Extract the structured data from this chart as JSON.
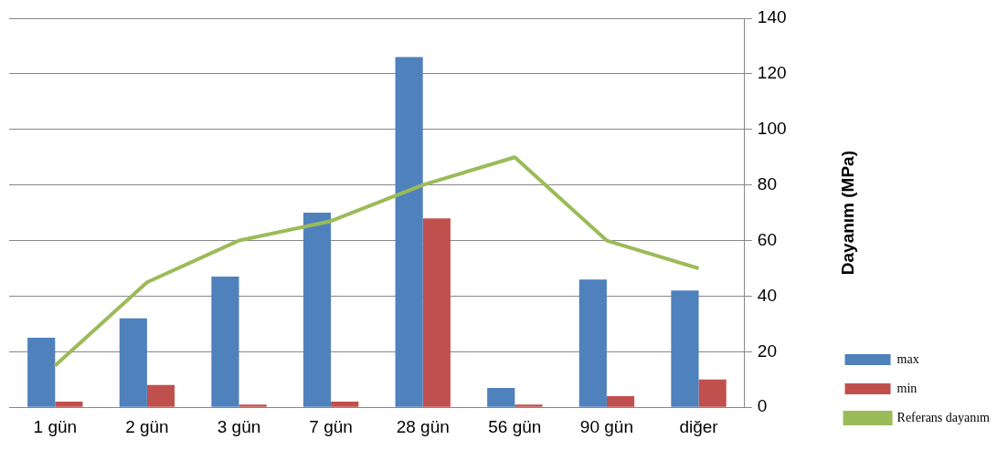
{
  "chart_data": {
    "type": "bar",
    "ylabel": "Dayanım (MPa)",
    "categories": [
      "1 gün",
      "2 gün",
      "3 gün",
      "7 gün",
      "28 gün",
      "56 gün",
      "90 gün",
      "diğer"
    ],
    "series": [
      {
        "name": "max",
        "color": "#4f81bd",
        "values": [
          25,
          32,
          47,
          70,
          126,
          7,
          46,
          42
        ]
      },
      {
        "name": "min",
        "color": "#c0504d",
        "values": [
          2,
          8,
          1,
          2,
          68,
          1,
          4,
          10
        ]
      },
      {
        "name": "Referans dayanım",
        "type": "line",
        "color": "#9bbb59",
        "marker": "none",
        "values": [
          15,
          45,
          60,
          67,
          80,
          90,
          60,
          50
        ]
      }
    ],
    "ylim": [
      0,
      140
    ],
    "yticks": [
      0,
      20,
      40,
      60,
      80,
      100,
      120,
      140
    ],
    "grid": "y",
    "legend": "bottom right"
  }
}
